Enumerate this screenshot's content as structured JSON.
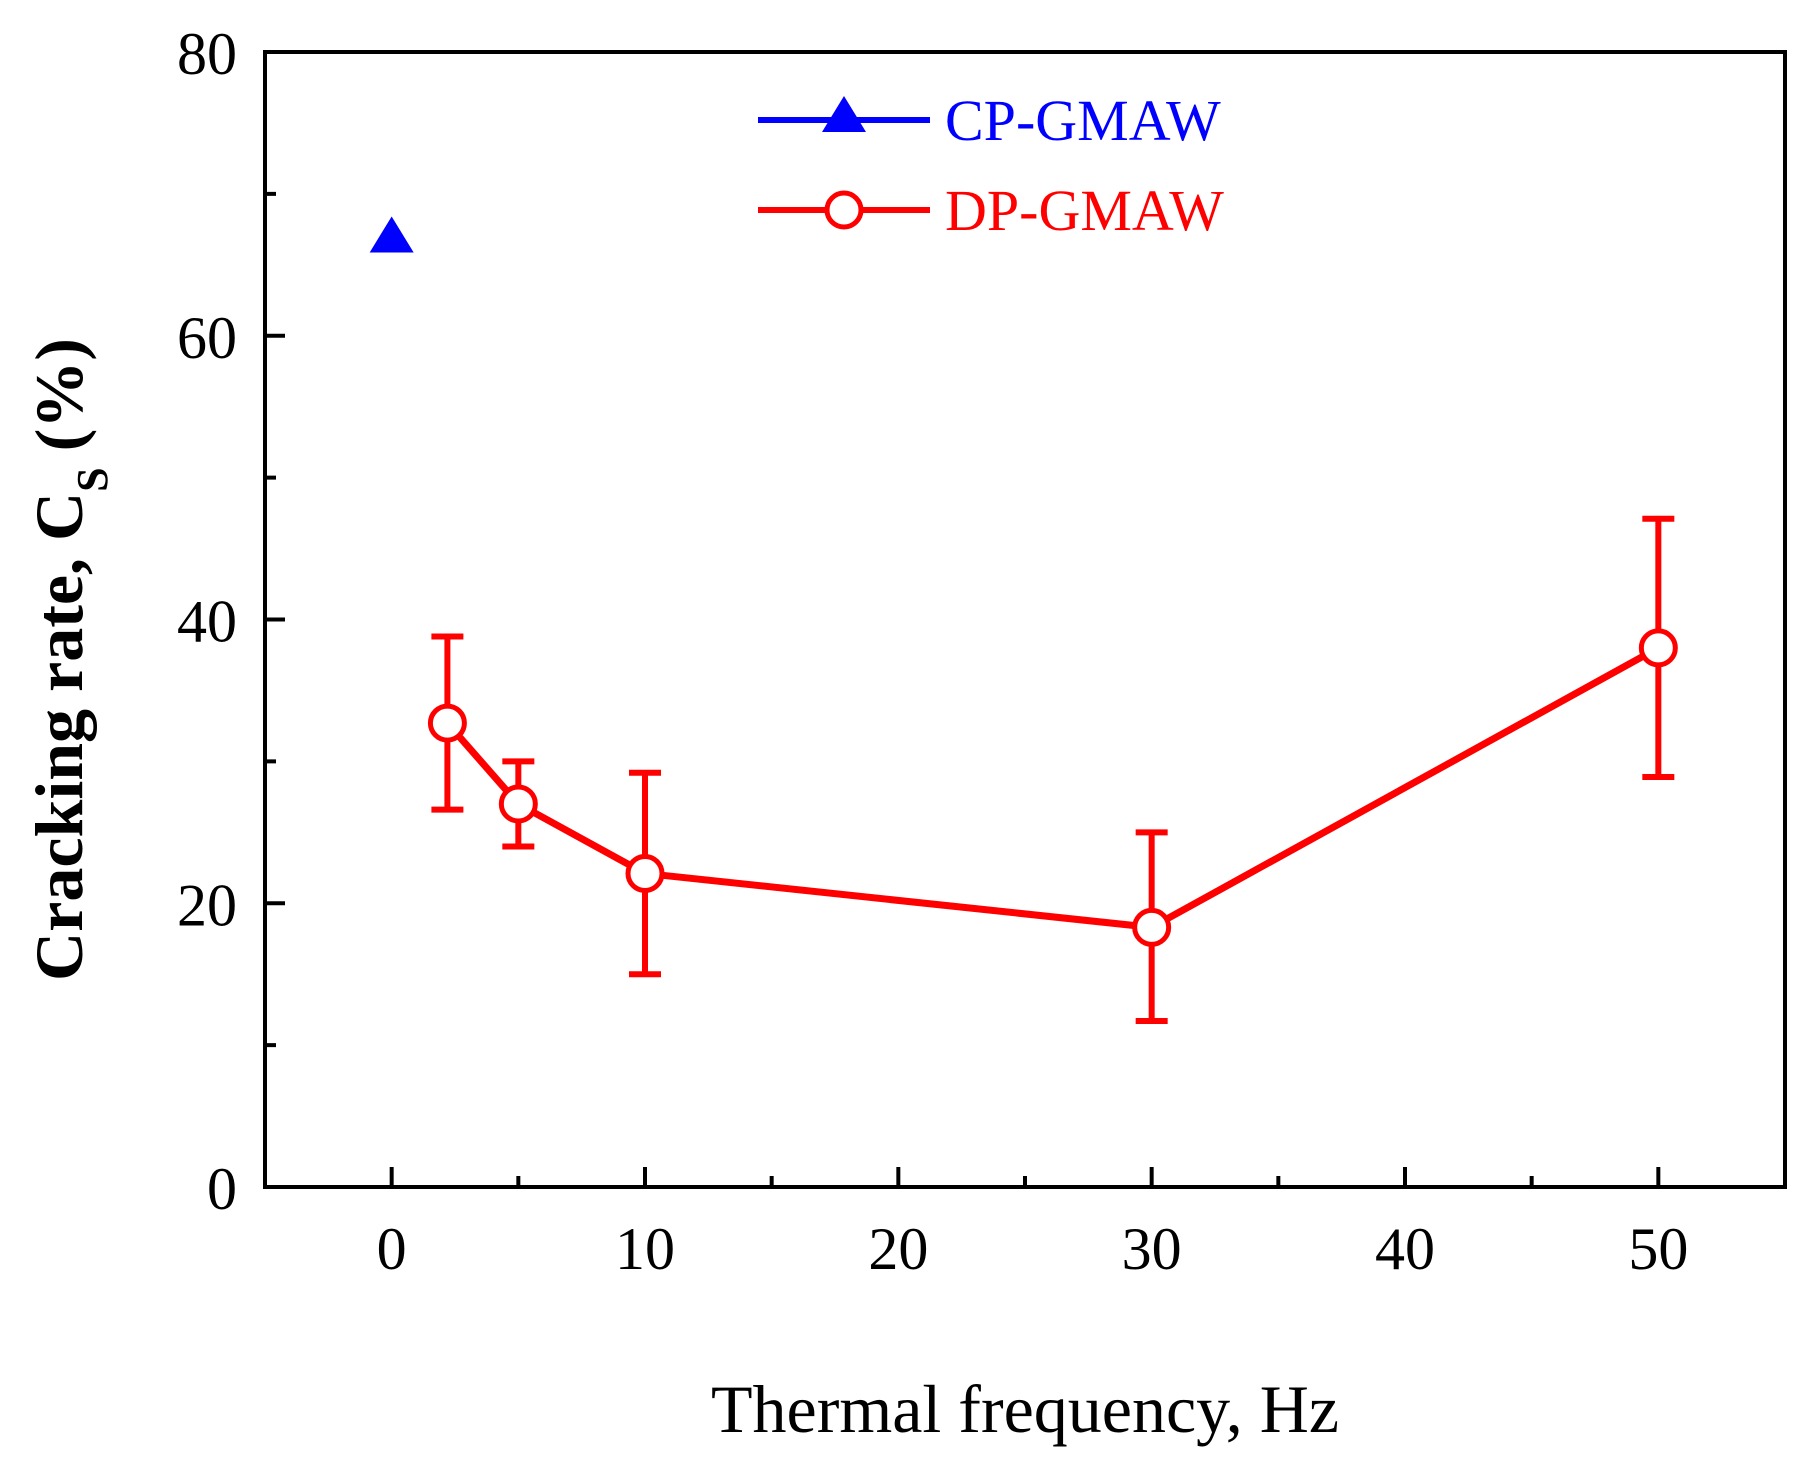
{
  "chart_data": {
    "type": "line",
    "xlabel": "Thermal frequency, Hz",
    "ylabel": "Cracking rate, C",
    "ylabel_subscript": "S",
    "ylabel_unit": "(%)",
    "xlim": [
      -5,
      55
    ],
    "ylim": [
      0,
      80
    ],
    "xticks": [
      0,
      10,
      20,
      30,
      40,
      50
    ],
    "xticks_minor": [
      5,
      15,
      25,
      35,
      45
    ],
    "yticks": [
      0,
      20,
      40,
      60,
      80
    ],
    "yticks_minor": [
      10,
      30,
      50,
      70
    ],
    "grid": false,
    "legend_position": "top-center",
    "series": [
      {
        "name": "CP-GMAW",
        "color": "#0000ff",
        "marker": "filled-triangle",
        "line": false,
        "x": [
          0
        ],
        "y": [
          67
        ],
        "err_low": [
          null
        ],
        "err_high": [
          null
        ]
      },
      {
        "name": "DP-GMAW",
        "color": "#ff0000",
        "marker": "open-circle",
        "line": true,
        "x": [
          2.2,
          5,
          10,
          30,
          50
        ],
        "y": [
          32.7,
          27,
          22.1,
          18.3,
          38
        ],
        "err_low": [
          26.6,
          24,
          15,
          11.7,
          28.9
        ],
        "err_high": [
          38.8,
          30,
          29.2,
          25,
          47.1
        ]
      }
    ]
  }
}
